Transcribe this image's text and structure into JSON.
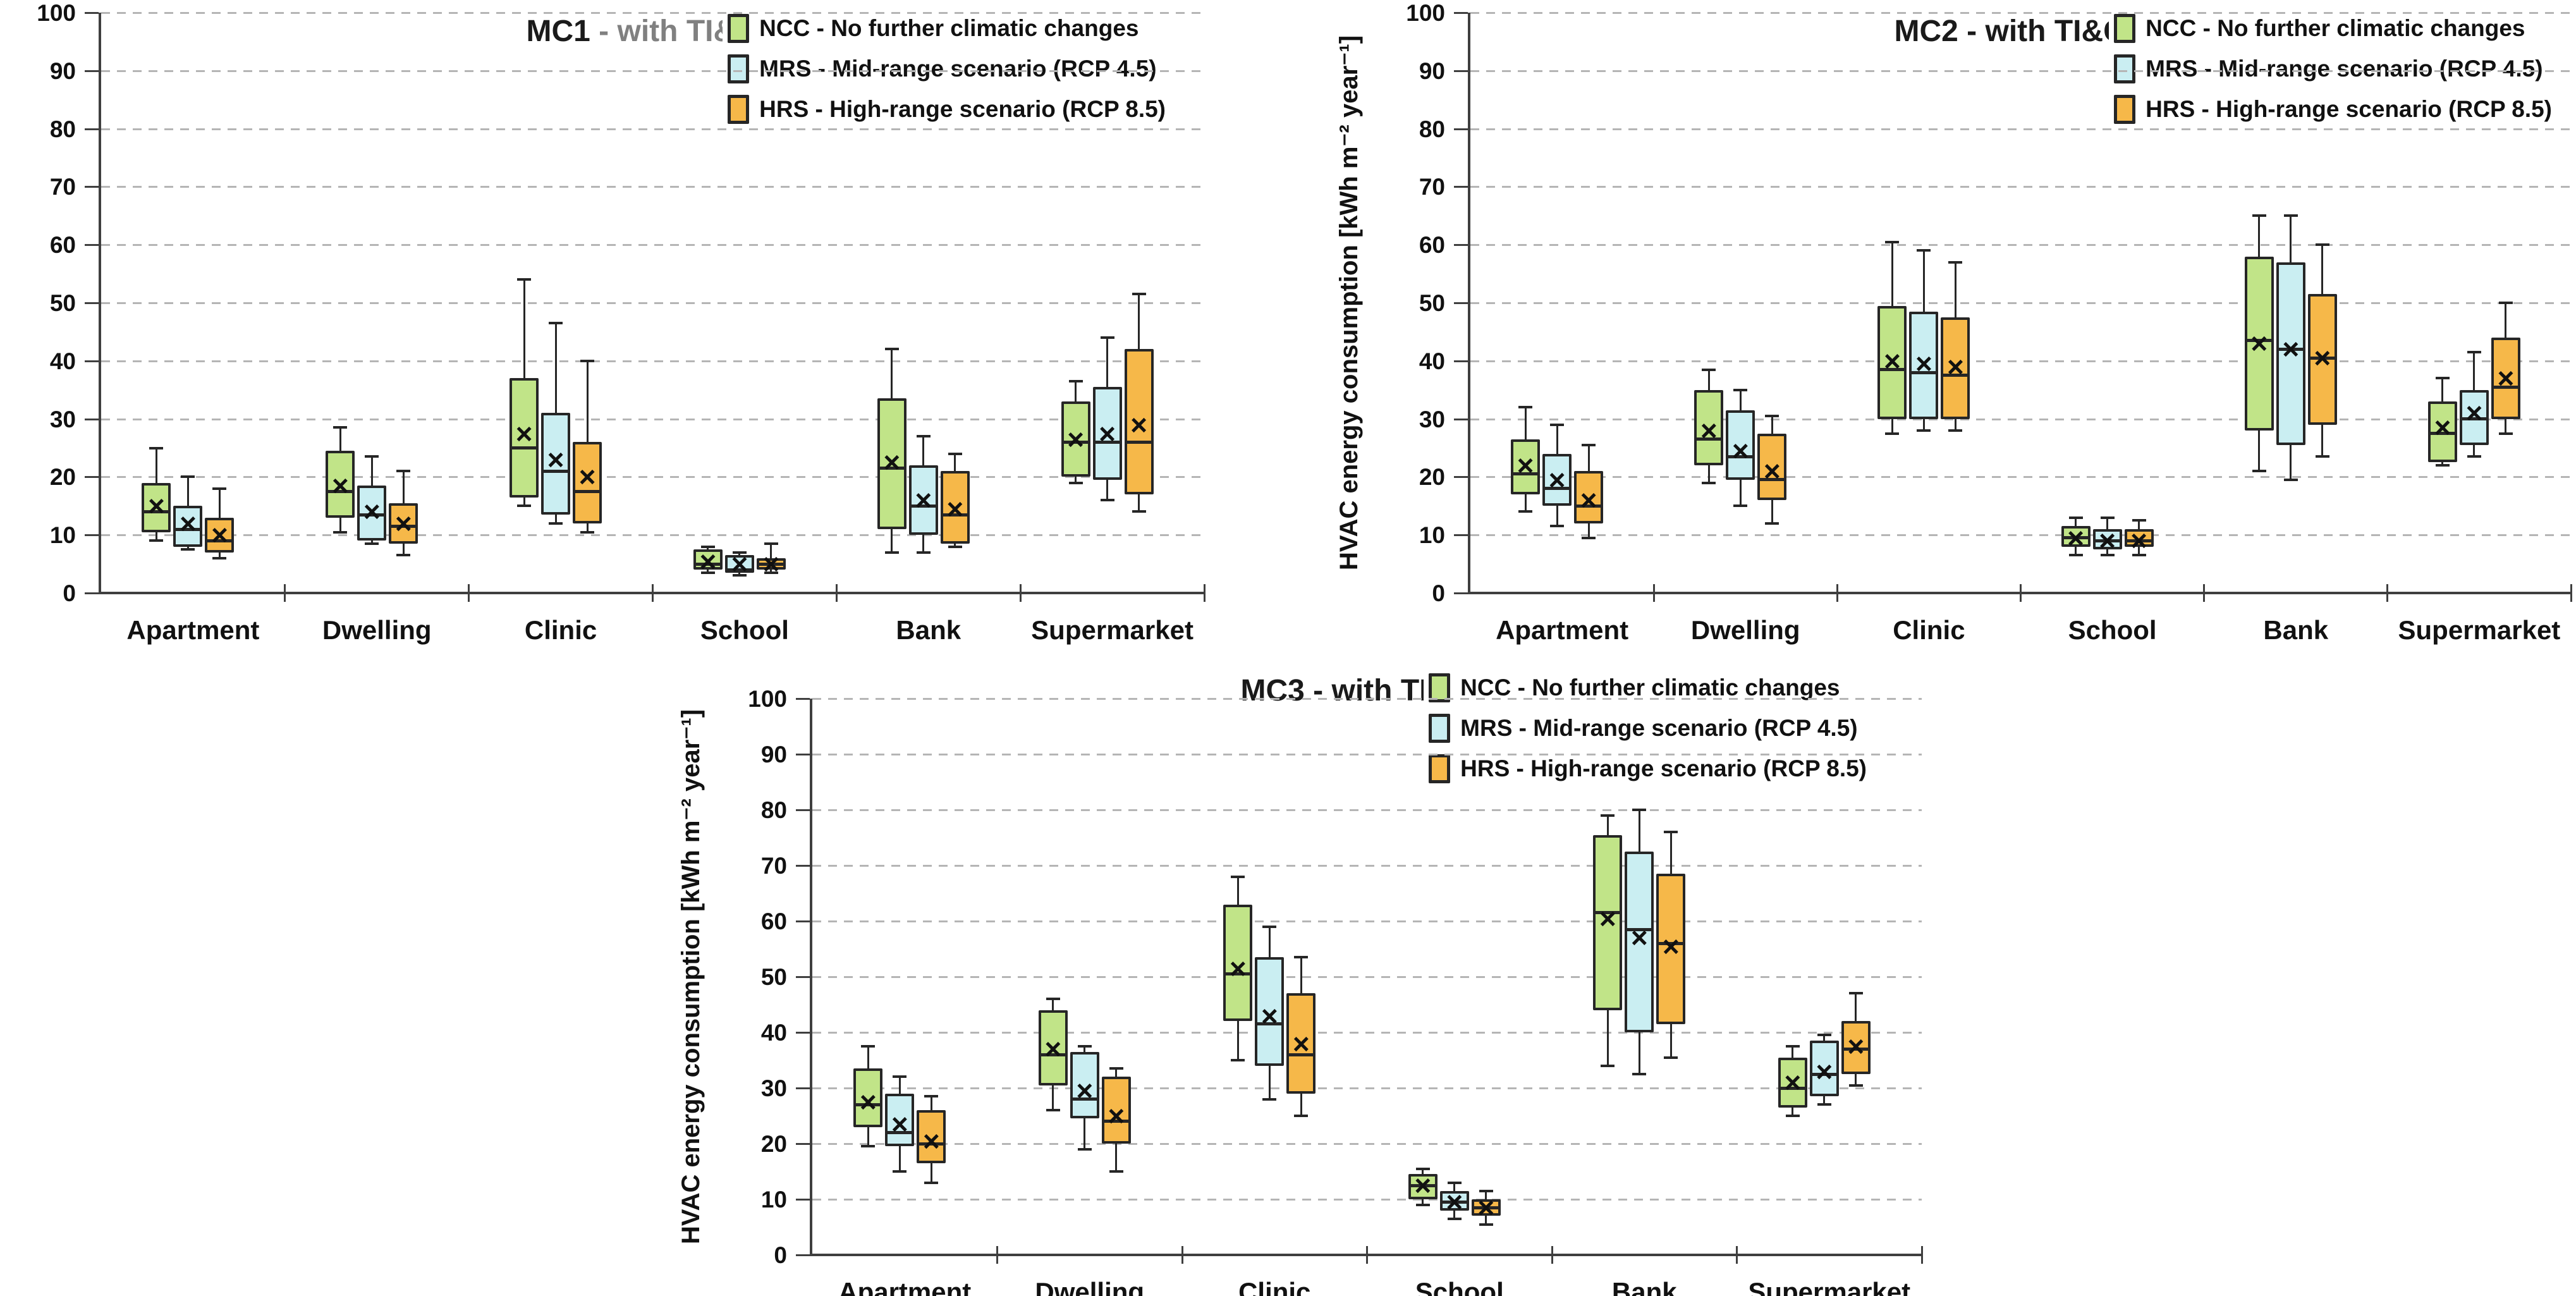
{
  "axis": {
    "ymin": 0,
    "ymax": 100,
    "ystep": 10,
    "ylabel": "HVAC energy consumption [kWh m⁻² year⁻¹]",
    "grid": "dashed-horizontal"
  },
  "legend": [
    {
      "key": "NCC",
      "label": "NCC - No further climatic changes",
      "color": "#c1e488"
    },
    {
      "key": "MRS",
      "label": "MRS - Mid-range scenario (RCP 4.5)",
      "color": "#caeef2"
    },
    {
      "key": "HRS",
      "label": "HRS - High-range scenario (RCP 8.5)",
      "color": "#f6b849"
    }
  ],
  "colors": {
    "box_border": "#262626",
    "axis": "#3f3f3f",
    "gridline": "#b5b5b5",
    "title_black": "#1a1a1a",
    "title_gray": "#808080"
  },
  "chart_data": [
    {
      "type": "box",
      "title_prefix": "MC1",
      "title_suffix": " - with TI&GS",
      "title_suffix_color": "#808080",
      "categories": [
        "Apartment",
        "Dwelling",
        "Clinic",
        "School",
        "Bank",
        "Supermarket"
      ],
      "ylim": [
        0,
        100
      ],
      "legend_position": "top-right",
      "series": [
        {
          "key": "NCC",
          "boxes": [
            {
              "min": 9,
              "q1": 10.5,
              "med": 14,
              "mean": 15,
              "q3": 19,
              "max": 25
            },
            {
              "min": 10.5,
              "q1": 13,
              "med": 17.5,
              "mean": 18.5,
              "q3": 24.5,
              "max": 28.5
            },
            {
              "min": 15,
              "q1": 16.5,
              "med": 25,
              "mean": 27.5,
              "q3": 37,
              "max": 54
            },
            {
              "min": 3.5,
              "q1": 4,
              "med": 5,
              "mean": 5.5,
              "q3": 7.5,
              "max": 8
            },
            {
              "min": 7,
              "q1": 11,
              "med": 21.5,
              "mean": 22.5,
              "q3": 33.5,
              "max": 42
            },
            {
              "min": 19,
              "q1": 20,
              "med": 26,
              "mean": 26.5,
              "q3": 33,
              "max": 36.5
            }
          ]
        },
        {
          "key": "MRS",
          "boxes": [
            {
              "min": 7.5,
              "q1": 8,
              "med": 11,
              "mean": 12,
              "q3": 15,
              "max": 20
            },
            {
              "min": 8.5,
              "q1": 9,
              "med": 13.5,
              "mean": 14,
              "q3": 18.5,
              "max": 23.5
            },
            {
              "min": 12,
              "q1": 13.5,
              "med": 21,
              "mean": 23,
              "q3": 31,
              "max": 46.5
            },
            {
              "min": 3,
              "q1": 3.5,
              "med": 4,
              "mean": 5,
              "q3": 6.5,
              "max": 7
            },
            {
              "min": 7,
              "q1": 10,
              "med": 15,
              "mean": 16,
              "q3": 22,
              "max": 27
            },
            {
              "min": 16,
              "q1": 19.5,
              "med": 26,
              "mean": 27.5,
              "q3": 35.5,
              "max": 44
            }
          ]
        },
        {
          "key": "HRS",
          "boxes": [
            {
              "min": 6,
              "q1": 7,
              "med": 9,
              "mean": 10,
              "q3": 13,
              "max": 18
            },
            {
              "min": 6.5,
              "q1": 8.5,
              "med": 11.5,
              "mean": 12,
              "q3": 15.5,
              "max": 21
            },
            {
              "min": 10.5,
              "q1": 12,
              "med": 17.5,
              "mean": 20,
              "q3": 26,
              "max": 40
            },
            {
              "min": 3.5,
              "q1": 4,
              "med": 5,
              "mean": 5,
              "q3": 6,
              "max": 8.5
            },
            {
              "min": 8,
              "q1": 8.5,
              "med": 13.5,
              "mean": 14.5,
              "q3": 21,
              "max": 24
            },
            {
              "min": 14,
              "q1": 17,
              "med": 26,
              "mean": 29,
              "q3": 42,
              "max": 51.5
            }
          ]
        }
      ]
    },
    {
      "type": "box",
      "title_prefix": "MC2",
      "title_suffix": " - with TI&GS",
      "title_suffix_color": "#1a1a1a",
      "categories": [
        "Apartment",
        "Dwelling",
        "Clinic",
        "School",
        "Bank",
        "Supermarket"
      ],
      "ylim": [
        0,
        100
      ],
      "legend_position": "top-right",
      "series": [
        {
          "key": "NCC",
          "boxes": [
            {
              "min": 14,
              "q1": 17,
              "med": 20.5,
              "mean": 22,
              "q3": 26.5,
              "max": 32
            },
            {
              "min": 19,
              "q1": 22,
              "med": 26.5,
              "mean": 28,
              "q3": 35,
              "max": 38.5
            },
            {
              "min": 27.5,
              "q1": 30,
              "med": 38.5,
              "mean": 40,
              "q3": 49.5,
              "max": 60.5
            },
            {
              "min": 6.5,
              "q1": 8,
              "med": 9.5,
              "mean": 9.5,
              "q3": 11.5,
              "max": 13
            },
            {
              "min": 21,
              "q1": 28,
              "med": 43.5,
              "mean": 43,
              "q3": 58,
              "max": 65
            },
            {
              "min": 22,
              "q1": 22.5,
              "med": 27.5,
              "mean": 28.5,
              "q3": 33,
              "max": 37
            }
          ]
        },
        {
          "key": "MRS",
          "boxes": [
            {
              "min": 11.5,
              "q1": 15,
              "med": 18,
              "mean": 19.5,
              "q3": 24,
              "max": 29
            },
            {
              "min": 15,
              "q1": 19.5,
              "med": 23.5,
              "mean": 24.5,
              "q3": 31.5,
              "max": 35
            },
            {
              "min": 28,
              "q1": 30,
              "med": 38,
              "mean": 39.5,
              "q3": 48.5,
              "max": 59
            },
            {
              "min": 6.5,
              "q1": 7.5,
              "med": 9,
              "mean": 9,
              "q3": 11,
              "max": 13
            },
            {
              "min": 19.5,
              "q1": 25.5,
              "med": 42,
              "mean": 42,
              "q3": 57,
              "max": 65
            },
            {
              "min": 23.5,
              "q1": 25.5,
              "med": 30,
              "mean": 31,
              "q3": 35,
              "max": 41.5
            }
          ]
        },
        {
          "key": "HRS",
          "boxes": [
            {
              "min": 9.5,
              "q1": 12,
              "med": 15,
              "mean": 16,
              "q3": 21,
              "max": 25.5
            },
            {
              "min": 12,
              "q1": 16,
              "med": 19.5,
              "mean": 21,
              "q3": 27.5,
              "max": 30.5
            },
            {
              "min": 28,
              "q1": 30,
              "med": 37.5,
              "mean": 39,
              "q3": 47.5,
              "max": 57
            },
            {
              "min": 6.5,
              "q1": 8,
              "med": 9,
              "mean": 9,
              "q3": 11,
              "max": 12.5
            },
            {
              "min": 23.5,
              "q1": 29,
              "med": 40.5,
              "mean": 40.5,
              "q3": 51.5,
              "max": 60
            },
            {
              "min": 27.5,
              "q1": 30,
              "med": 35.5,
              "mean": 37,
              "q3": 44,
              "max": 50
            }
          ]
        }
      ]
    },
    {
      "type": "box",
      "title_prefix": "MC3",
      "title_suffix": " - with TI&GS",
      "title_suffix_color": "#1a1a1a",
      "categories": [
        "Apartment",
        "Dwelling",
        "Clinic",
        "School",
        "Bank",
        "Supermarket"
      ],
      "ylim": [
        0,
        100
      ],
      "legend_position": "top-right",
      "series": [
        {
          "key": "NCC",
          "boxes": [
            {
              "min": 19.5,
              "q1": 23,
              "med": 27,
              "mean": 27.5,
              "q3": 33.5,
              "max": 37.5
            },
            {
              "min": 26,
              "q1": 30.5,
              "med": 36,
              "mean": 37,
              "q3": 44,
              "max": 46
            },
            {
              "min": 35,
              "q1": 42,
              "med": 50.5,
              "mean": 51.5,
              "q3": 63,
              "max": 68
            },
            {
              "min": 9,
              "q1": 10,
              "med": 12.5,
              "mean": 12.5,
              "q3": 14.5,
              "max": 15.5
            },
            {
              "min": 34,
              "q1": 44,
              "med": 61.5,
              "mean": 60.5,
              "q3": 75.5,
              "max": 79
            },
            {
              "min": 25,
              "q1": 26.5,
              "med": 30,
              "mean": 31,
              "q3": 35.5,
              "max": 37.5
            }
          ]
        },
        {
          "key": "MRS",
          "boxes": [
            {
              "min": 15,
              "q1": 19.5,
              "med": 22,
              "mean": 23.5,
              "q3": 29,
              "max": 32
            },
            {
              "min": 19,
              "q1": 24.5,
              "med": 28,
              "mean": 29.5,
              "q3": 36.5,
              "max": 37.5
            },
            {
              "min": 28,
              "q1": 34,
              "med": 41.5,
              "mean": 43,
              "q3": 53.5,
              "max": 59
            },
            {
              "min": 6.5,
              "q1": 8,
              "med": 9.5,
              "mean": 9.5,
              "q3": 11.5,
              "max": 13
            },
            {
              "min": 32.5,
              "q1": 40,
              "med": 58.5,
              "mean": 57,
              "q3": 72.5,
              "max": 80
            },
            {
              "min": 27,
              "q1": 28.5,
              "med": 32.5,
              "mean": 33,
              "q3": 38.5,
              "max": 39.5
            }
          ]
        },
        {
          "key": "HRS",
          "boxes": [
            {
              "min": 13,
              "q1": 16.5,
              "med": 20,
              "mean": 20.5,
              "q3": 26,
              "max": 28.5
            },
            {
              "min": 15,
              "q1": 20,
              "med": 24,
              "mean": 25,
              "q3": 32,
              "max": 33.5
            },
            {
              "min": 25,
              "q1": 29,
              "med": 36,
              "mean": 38,
              "q3": 47,
              "max": 53.5
            },
            {
              "min": 5.5,
              "q1": 7,
              "med": 8.5,
              "mean": 8.5,
              "q3": 10,
              "max": 11.5
            },
            {
              "min": 35.5,
              "q1": 41.5,
              "med": 56,
              "mean": 55.5,
              "q3": 68.5,
              "max": 76
            },
            {
              "min": 30.5,
              "q1": 32.5,
              "med": 37,
              "mean": 37.5,
              "q3": 42,
              "max": 47
            }
          ]
        }
      ]
    }
  ]
}
